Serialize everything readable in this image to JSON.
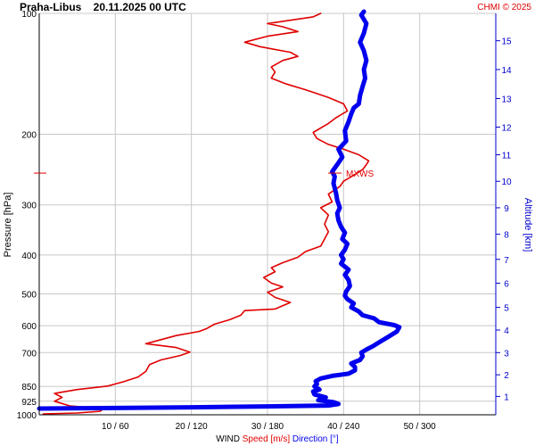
{
  "chart_data": {
    "type": "line",
    "title": "Praha-Libus    20.11.2025 00 UTC",
    "credit": "CHMI © 2025",
    "ylabel": "Pressure [hPa]",
    "ylabel_right": "Altitude [km]",
    "y_scale": "log",
    "ylim": [
      1000,
      100
    ],
    "pressure_ticks": [
      "100",
      "200",
      "300",
      "400",
      "500",
      "600",
      "700",
      "850",
      "925",
      "1000"
    ],
    "pressure_tick_values": [
      100,
      200,
      300,
      400,
      500,
      600,
      700,
      850,
      925,
      1000
    ],
    "altitude_ticks": [
      "1",
      "2",
      "3",
      "4",
      "5",
      "6",
      "7",
      "8",
      "9",
      "10",
      "11",
      "12",
      "13",
      "14",
      "15"
    ],
    "altitude_tick_pressures": [
      900,
      795,
      700,
      615,
      540,
      470,
      410,
      355,
      305,
      262,
      225,
      192,
      163,
      138,
      117
    ],
    "x_ticks": [
      "10 / 60",
      "20 / 120",
      "30 / 180",
      "40 / 240",
      "50 / 300"
    ],
    "xlim_speed": [
      0,
      60
    ],
    "xlim_direction": [
      0,
      360
    ],
    "xlabel_parts": {
      "wind": "WIND",
      "speed": "Speed [m/s]",
      "direction": "Direction [°]"
    },
    "annotation": {
      "text": "MXWS",
      "pressure": 250
    },
    "grid": true,
    "colors": {
      "speed": "#e00000",
      "direction": "#0000ee",
      "grid": "#c8c8c8",
      "axis_right": "#0000cc"
    },
    "series": [
      {
        "id": "speed",
        "x_units": "m/s",
        "points": [
          [
            0.5,
            995
          ],
          [
            5,
            990
          ],
          [
            8,
            980
          ],
          [
            8.5,
            965
          ],
          [
            4,
            950
          ],
          [
            2,
            925
          ],
          [
            3,
            905
          ],
          [
            2,
            885
          ],
          [
            5,
            865
          ],
          [
            9,
            848
          ],
          [
            11,
            828
          ],
          [
            13,
            805
          ],
          [
            14,
            780
          ],
          [
            14.5,
            750
          ],
          [
            16,
            730
          ],
          [
            18.5,
            712
          ],
          [
            19.8,
            698
          ],
          [
            18,
            680
          ],
          [
            14,
            665
          ],
          [
            16,
            650
          ],
          [
            18,
            635
          ],
          [
            21,
            620
          ],
          [
            22,
            610
          ],
          [
            23,
            595
          ],
          [
            25,
            580
          ],
          [
            26.5,
            565
          ],
          [
            27,
            550
          ],
          [
            31,
            545
          ],
          [
            33,
            525
          ],
          [
            31,
            510
          ],
          [
            30,
            495
          ],
          [
            32,
            480
          ],
          [
            30.5,
            470
          ],
          [
            29.5,
            455
          ],
          [
            31,
            440
          ],
          [
            30.5,
            430
          ],
          [
            32,
            418
          ],
          [
            34,
            405
          ],
          [
            35,
            392
          ],
          [
            37,
            380
          ],
          [
            37.5,
            365
          ],
          [
            38,
            350
          ],
          [
            37.5,
            335
          ],
          [
            38,
            318
          ],
          [
            37,
            305
          ],
          [
            38.5,
            295
          ],
          [
            38,
            282
          ],
          [
            39.5,
            270
          ],
          [
            40,
            262
          ],
          [
            41.5,
            252
          ],
          [
            42.5,
            245
          ],
          [
            43,
            238
          ],
          [
            43.3,
            233
          ],
          [
            42,
            225
          ],
          [
            40,
            218
          ],
          [
            38,
            212
          ],
          [
            36.5,
            205
          ],
          [
            36,
            198
          ],
          [
            38,
            188
          ],
          [
            39,
            182
          ],
          [
            40.5,
            175
          ],
          [
            40,
            168
          ],
          [
            38,
            162
          ],
          [
            35,
            155
          ],
          [
            32.5,
            150
          ],
          [
            30.5,
            145
          ],
          [
            31,
            140
          ],
          [
            30.5,
            136
          ],
          [
            32,
            131
          ],
          [
            34,
            128
          ],
          [
            33,
            125
          ],
          [
            29,
            121
          ],
          [
            27,
            118
          ],
          [
            30,
            114
          ],
          [
            34,
            111
          ],
          [
            32,
            108
          ],
          [
            30,
            106
          ],
          [
            33,
            104
          ],
          [
            36,
            102
          ],
          [
            37,
            100
          ]
        ]
      },
      {
        "id": "direction",
        "x_units": "degrees",
        "points": [
          [
            0,
            965
          ],
          [
            60,
            962
          ],
          [
            120,
            958
          ],
          [
            180,
            953
          ],
          [
            228,
            948
          ],
          [
            236,
            940
          ],
          [
            232,
            930
          ],
          [
            220,
            920
          ],
          [
            226,
            905
          ],
          [
            217,
            890
          ],
          [
            216,
            875
          ],
          [
            221,
            865
          ],
          [
            217,
            850
          ],
          [
            219,
            838
          ],
          [
            218,
            825
          ],
          [
            222,
            812
          ],
          [
            231,
            800
          ],
          [
            244,
            790
          ],
          [
            249,
            775
          ],
          [
            249,
            760
          ],
          [
            246,
            745
          ],
          [
            253,
            730
          ],
          [
            255,
            715
          ],
          [
            254,
            700
          ],
          [
            258,
            688
          ],
          [
            263,
            675
          ],
          [
            268,
            660
          ],
          [
            275,
            640
          ],
          [
            282,
            620
          ],
          [
            284,
            605
          ],
          [
            280,
            598
          ],
          [
            268,
            588
          ],
          [
            264,
            575
          ],
          [
            255,
            565
          ],
          [
            252,
            553
          ],
          [
            246,
            540
          ],
          [
            248,
            528
          ],
          [
            243,
            515
          ],
          [
            241,
            505
          ],
          [
            242,
            493
          ],
          [
            245,
            478
          ],
          [
            244,
            462
          ],
          [
            241,
            448
          ],
          [
            244,
            435
          ],
          [
            238,
            420
          ],
          [
            240,
            410
          ],
          [
            238,
            400
          ],
          [
            241,
            388
          ],
          [
            243,
            375
          ],
          [
            239,
            365
          ],
          [
            241,
            352
          ],
          [
            238,
            340
          ],
          [
            236,
            328
          ],
          [
            235,
            315
          ],
          [
            237,
            305
          ],
          [
            235,
            292
          ],
          [
            234,
            280
          ],
          [
            232,
            265
          ],
          [
            233,
            255
          ],
          [
            231,
            248
          ],
          [
            235,
            238
          ],
          [
            239,
            228
          ],
          [
            236,
            218
          ],
          [
            242,
            208
          ],
          [
            241,
            196
          ],
          [
            244,
            186
          ],
          [
            246,
            178
          ],
          [
            248,
            172
          ],
          [
            252,
            168
          ],
          [
            253,
            160
          ],
          [
            255,
            152
          ],
          [
            257,
            145
          ],
          [
            256,
            138
          ],
          [
            258,
            131
          ],
          [
            256,
            124
          ],
          [
            253,
            118
          ],
          [
            256,
            112
          ],
          [
            258,
            106
          ],
          [
            254,
            101
          ],
          [
            256,
            99
          ]
        ]
      }
    ]
  }
}
